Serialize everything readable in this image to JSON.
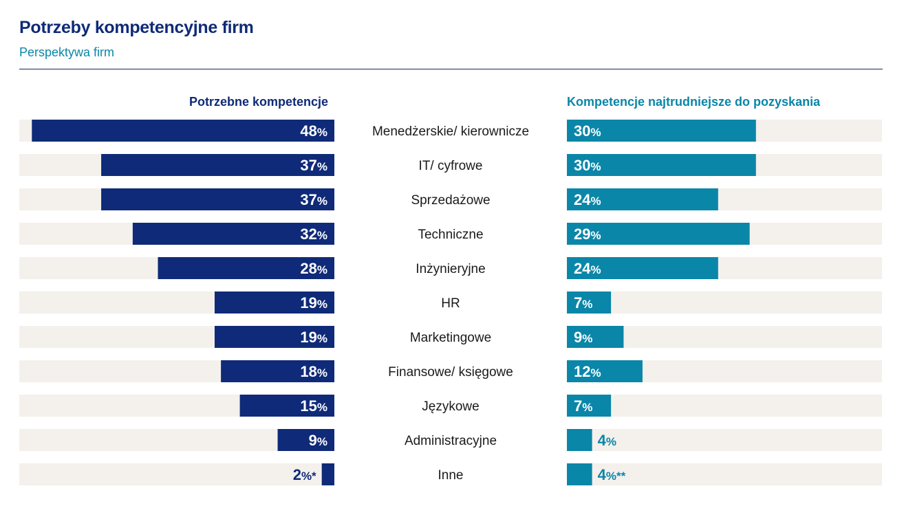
{
  "chart_data": {
    "type": "bar",
    "title": "Potrzeby kompetencyjne firm",
    "subtitle": "Perspektywa firm",
    "categories": [
      "Menedżerskie/ kierownicze",
      "IT/ cyfrowe",
      "Sprzedażowe",
      "Techniczne",
      "Inżynieryjne",
      "HR",
      "Marketingowe",
      "Finansowe/ księgowe",
      "Językowe",
      "Administracyjne",
      "Inne"
    ],
    "series": [
      {
        "name": "Potrzebne kompetencje",
        "values": [
          48,
          37,
          37,
          32,
          28,
          19,
          19,
          18,
          15,
          9,
          2
        ],
        "suffixes": [
          "",
          "",
          "",
          "",
          "",
          "",
          "",
          "",
          "",
          "",
          "*"
        ],
        "color": "#0f2a78",
        "direction": "left"
      },
      {
        "name": "Kompetencje najtrudniejsze do pozyskania",
        "values": [
          30,
          30,
          24,
          29,
          24,
          7,
          9,
          12,
          7,
          4,
          4
        ],
        "suffixes": [
          "",
          "",
          "",
          "",
          "",
          "",
          "",
          "",
          "",
          "",
          "**"
        ],
        "color": "#0a86a8",
        "direction": "right"
      }
    ],
    "unit": "%",
    "xlim": [
      0,
      50
    ],
    "track_color": "#f4f0ec"
  }
}
